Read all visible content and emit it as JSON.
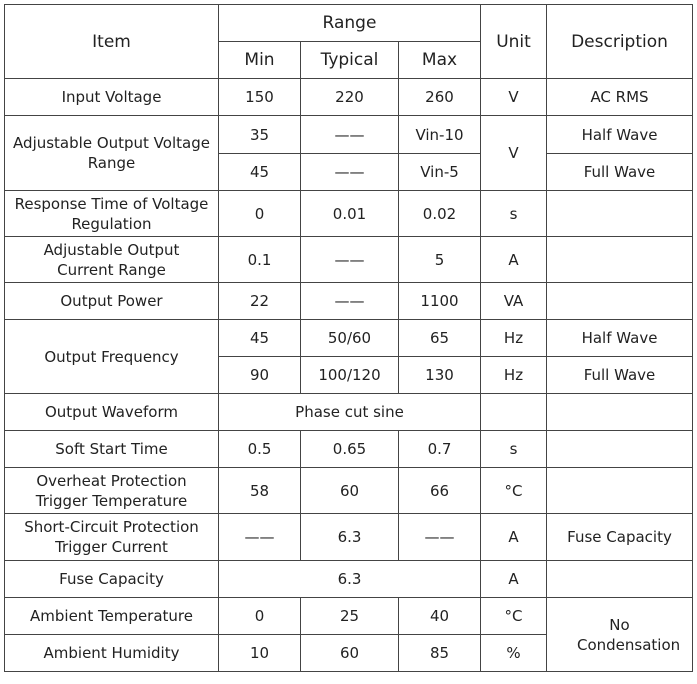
{
  "table": {
    "header": {
      "item": "Item",
      "range": "Range",
      "min": "Min",
      "typical": "Typical",
      "max": "Max",
      "unit": "Unit",
      "description": "Description"
    },
    "rows": [
      [
        "Input Voltage",
        "150",
        "220",
        "260",
        "V",
        "AC RMS"
      ],
      [
        "Adjustable Output Voltage Range",
        "35",
        "——",
        "Vin-10",
        "V",
        "Half Wave"
      ],
      [
        "45",
        "——",
        "Vin-5",
        "Full Wave"
      ],
      [
        "Response Time of Voltage Regulation",
        "0",
        "0.01",
        "0.02",
        "s"
      ],
      [
        "Adjustable Output Current Range",
        "0.1",
        "——",
        "5",
        "A"
      ],
      [
        "Output Power",
        "22",
        "——",
        "1100",
        "VA"
      ],
      [
        "Output Frequency",
        "45",
        "50/60",
        "65",
        "Hz",
        "Half Wave"
      ],
      [
        "90",
        "100/120",
        "130",
        "Hz",
        "Full Wave"
      ],
      [
        "Output Waveform",
        "Phase cut sine"
      ],
      [
        "Soft Start Time",
        "0.5",
        "0.65",
        "0.7",
        "s"
      ],
      [
        "Overheat Protection Trigger Temperature",
        "58",
        "60",
        "66",
        "°C"
      ],
      [
        "Short-Circuit Protection Trigger Current",
        "——",
        "6.3",
        "——",
        "A",
        "Fuse Capacity"
      ],
      [
        "Fuse Capacity",
        "6.3",
        "A"
      ],
      [
        "Ambient Temperature",
        "0",
        "25",
        "40",
        "°C",
        "No Condensation"
      ],
      [
        "Ambient Humidity",
        "10",
        "60",
        "85",
        "%"
      ]
    ]
  }
}
